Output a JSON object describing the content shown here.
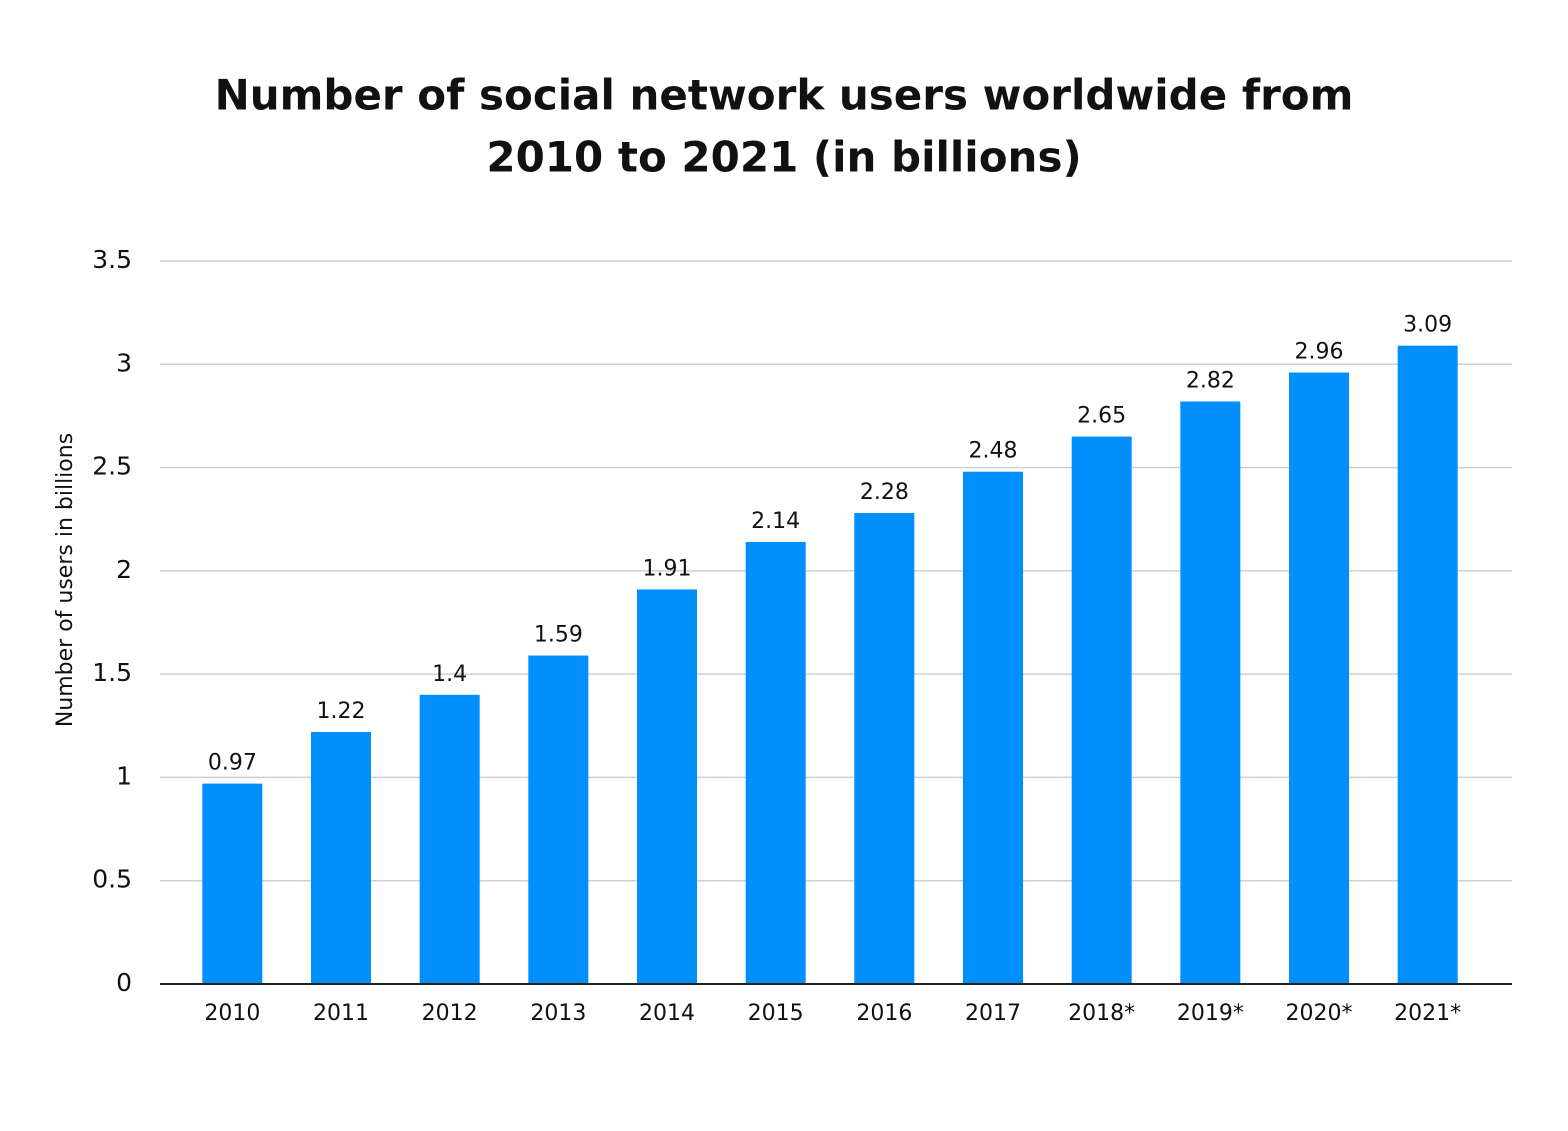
{
  "chart_data": {
    "type": "bar",
    "title": [
      "Number of social network users worldwide from",
      "2010 to 2021 (in billions)"
    ],
    "y_label": "Number of users in billions",
    "categories": [
      "2010",
      "2011",
      "2012",
      "2013",
      "2014",
      "2015",
      "2016",
      "2017",
      "2018*",
      "2019*",
      "2020*",
      "2021*"
    ],
    "values": [
      0.97,
      1.22,
      1.4,
      1.59,
      1.91,
      2.14,
      2.28,
      2.48,
      2.65,
      2.82,
      2.96,
      3.09
    ],
    "color": "#008ffd",
    "ylim": [
      0,
      3.5
    ],
    "yticks": [
      0,
      0.5,
      1,
      1.5,
      2,
      2.5,
      3,
      3.5
    ],
    "grid": true
  }
}
